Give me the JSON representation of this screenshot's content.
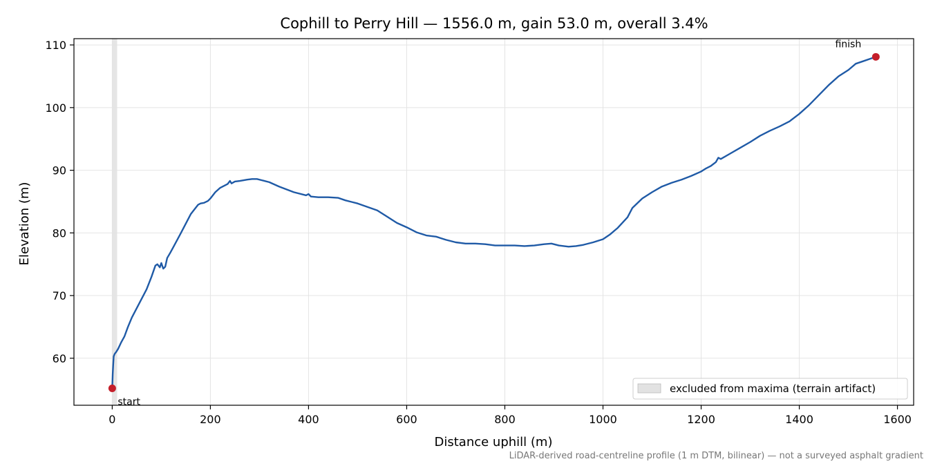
{
  "chart_data": {
    "type": "line",
    "title": "Cophill to Perry Hill — 1556.0 m, gain 53.0 m, overall 3.4%",
    "xlabel": "Distance uphill (m)",
    "ylabel": "Elevation (m)",
    "xlim": [
      -78,
      1633
    ],
    "ylim": [
      52.5,
      111
    ],
    "xticks": [
      0,
      200,
      400,
      600,
      800,
      1000,
      1200,
      1400,
      1600
    ],
    "xtick_labels": [
      "0",
      "200",
      "400",
      "600",
      "800",
      "1000",
      "1200",
      "1400",
      "1600"
    ],
    "yticks": [
      60,
      70,
      80,
      90,
      100,
      110
    ],
    "ytick_labels": [
      "60",
      "70",
      "80",
      "90",
      "100",
      "110"
    ],
    "grid": true,
    "legend_position": "bottom-right",
    "series": [
      {
        "color": "#1f5aa6",
        "x": [
          0,
          1,
          2,
          3,
          5,
          8,
          12,
          18,
          25,
          32,
          40,
          50,
          60,
          70,
          80,
          88,
          92,
          97,
          100,
          104,
          108,
          112,
          118,
          125,
          140,
          160,
          175,
          180,
          187,
          195,
          200,
          210,
          220,
          235,
          240,
          243,
          250,
          260,
          275,
          285,
          295,
          305,
          320,
          340,
          370,
          395,
          400,
          405,
          420,
          440,
          460,
          475,
          500,
          540,
          560,
          580,
          600,
          620,
          640,
          660,
          680,
          700,
          720,
          740,
          760,
          780,
          800,
          820,
          840,
          860,
          880,
          895,
          910,
          930,
          945,
          960,
          980,
          1000,
          1015,
          1030,
          1050,
          1060,
          1080,
          1100,
          1120,
          1140,
          1160,
          1180,
          1200,
          1210,
          1220,
          1230,
          1235,
          1240,
          1260,
          1280,
          1300,
          1320,
          1340,
          1360,
          1380,
          1400,
          1420,
          1440,
          1460,
          1480,
          1500,
          1515,
          1530,
          1545,
          1556
        ],
        "y": [
          55.2,
          57.5,
          59.0,
          60.3,
          60.7,
          61.0,
          61.5,
          62.5,
          63.5,
          65.0,
          66.5,
          68.0,
          69.5,
          71.0,
          73.0,
          74.8,
          75.0,
          74.5,
          75.2,
          74.3,
          74.6,
          76.0,
          76.8,
          77.8,
          80.0,
          83.0,
          84.5,
          84.7,
          84.8,
          85.1,
          85.5,
          86.5,
          87.2,
          87.8,
          88.3,
          87.9,
          88.2,
          88.3,
          88.5,
          88.6,
          88.6,
          88.4,
          88.1,
          87.4,
          86.5,
          86.0,
          86.2,
          85.8,
          85.7,
          85.7,
          85.6,
          85.2,
          84.7,
          83.6,
          82.6,
          81.6,
          80.9,
          80.1,
          79.6,
          79.4,
          78.9,
          78.5,
          78.3,
          78.3,
          78.2,
          78.0,
          78.0,
          78.0,
          77.9,
          78.0,
          78.2,
          78.3,
          78.0,
          77.8,
          77.9,
          78.1,
          78.5,
          79.0,
          79.8,
          80.8,
          82.5,
          84.0,
          85.5,
          86.5,
          87.4,
          88.0,
          88.5,
          89.1,
          89.8,
          90.3,
          90.7,
          91.3,
          92.0,
          91.8,
          92.7,
          93.6,
          94.5,
          95.5,
          96.3,
          97.0,
          97.8,
          99.0,
          100.4,
          102.0,
          103.6,
          105.0,
          106.0,
          107.0,
          107.4,
          107.8,
          108.1
        ]
      }
    ],
    "markers": [
      {
        "label": "start",
        "x": 0,
        "y": 55.2,
        "color": "#c41e2a"
      },
      {
        "label": "finish",
        "x": 1556,
        "y": 108.1,
        "color": "#c41e2a"
      }
    ],
    "shaded_region": {
      "label": "excluded from maxima (terrain artifact)",
      "x": [
        0,
        10
      ],
      "color": "#e2e2e2"
    },
    "footnote": "LiDAR-derived road-centreline profile (1 m DTM, bilinear) — not a surveyed asphalt gradient"
  }
}
